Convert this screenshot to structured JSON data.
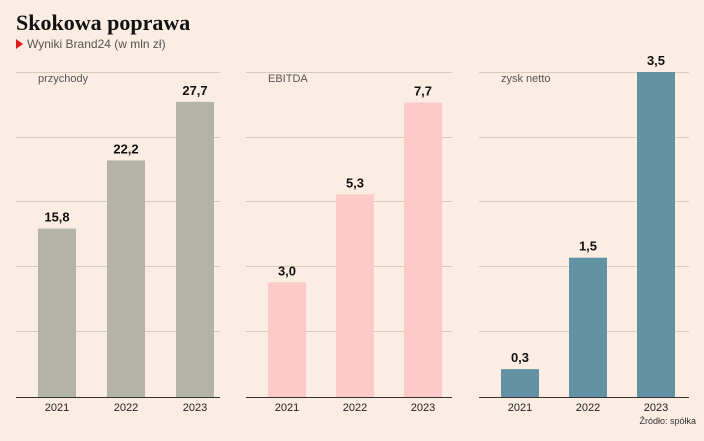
{
  "header": {
    "title": "Skokowa poprawa",
    "subtitle": "Wyniki Brand24 (w mln zł)",
    "marker_color": "#e21d1d"
  },
  "source": "Źródło: spółka",
  "colors": {
    "background": "#fbede2",
    "gridline": "#d8c8bd",
    "axis": "#333333"
  },
  "chart_data": [
    {
      "type": "bar",
      "title": "przychody",
      "categories": [
        "2021",
        "2022",
        "2023"
      ],
      "values": [
        15.8,
        22.2,
        27.7
      ],
      "value_labels": [
        "15,8",
        "22,2",
        "27,7"
      ],
      "ylim": [
        0,
        30.5
      ],
      "grid": true,
      "color": "#b3b3a8"
    },
    {
      "type": "bar",
      "title": "EBITDA",
      "categories": [
        "2021",
        "2022",
        "2023"
      ],
      "values": [
        3.0,
        5.3,
        7.7
      ],
      "value_labels": [
        "3,0",
        "5,3",
        "7,7"
      ],
      "ylim": [
        0,
        8.5
      ],
      "grid": true,
      "color": "#fdc9c9"
    },
    {
      "type": "bar",
      "title": "zysk netto",
      "categories": [
        "2021",
        "2022",
        "2023"
      ],
      "values": [
        0.3,
        1.5,
        3.5
      ],
      "value_labels": [
        "0,3",
        "1,5",
        "3,5"
      ],
      "ylim": [
        0,
        3.5
      ],
      "grid": true,
      "color": "#6292a3"
    }
  ]
}
